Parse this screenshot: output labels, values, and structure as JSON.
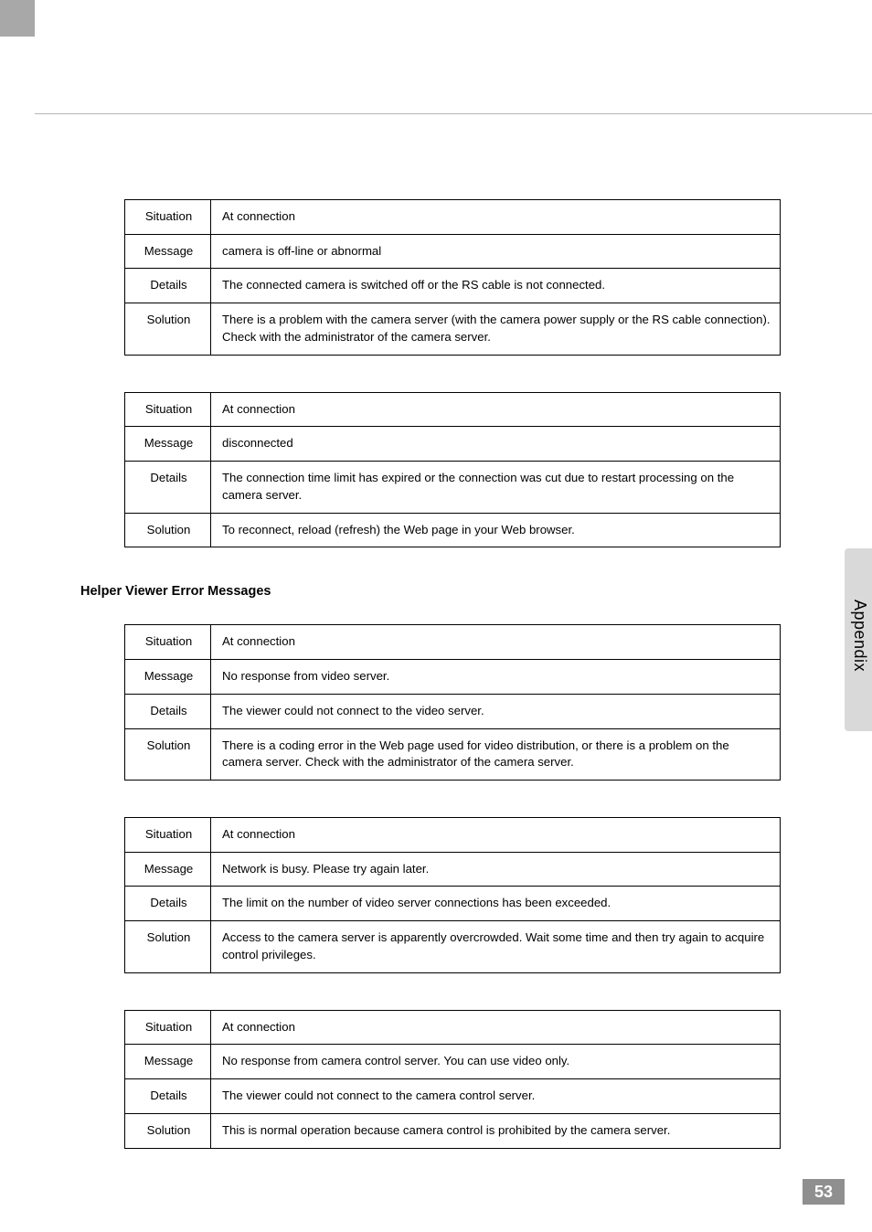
{
  "sideTab": {
    "label": "Appendix"
  },
  "pageNumber": "53",
  "sectionHeading": "Helper Viewer Error Messages",
  "tables": [
    {
      "rows": [
        {
          "label": "Situation",
          "value": "At connection"
        },
        {
          "label": "Message",
          "value": "camera is off-line or abnormal"
        },
        {
          "label": "Details",
          "value": "The connected camera is switched off or the RS cable is not connected."
        },
        {
          "label": "Solution",
          "value": "There is a problem with the camera server (with the camera power supply or the RS cable connection). Check with the administrator of the camera server."
        }
      ]
    },
    {
      "rows": [
        {
          "label": "Situation",
          "value": "At connection"
        },
        {
          "label": "Message",
          "value": "disconnected"
        },
        {
          "label": "Details",
          "value": "The connection time limit has expired or the connection was cut due to restart processing on the camera server."
        },
        {
          "label": "Solution",
          "value": "To reconnect, reload (refresh) the Web page in your Web browser."
        }
      ]
    },
    {
      "rows": [
        {
          "label": "Situation",
          "value": "At connection"
        },
        {
          "label": "Message",
          "value": "No response from video server."
        },
        {
          "label": "Details",
          "value": "The viewer could not connect to the video server."
        },
        {
          "label": "Solution",
          "value": "There is a coding error in the Web page used for video distribution, or there is a problem on the camera server. Check with the administrator of the camera server."
        }
      ]
    },
    {
      "rows": [
        {
          "label": "Situation",
          "value": "At connection"
        },
        {
          "label": "Message",
          "value": "Network is busy. Please try again later."
        },
        {
          "label": "Details",
          "value": "The limit on the number of video server connections has been exceeded."
        },
        {
          "label": "Solution",
          "value": "Access to the camera server is apparently overcrowded. Wait some time and then try again to acquire control privileges."
        }
      ]
    },
    {
      "rows": [
        {
          "label": "Situation",
          "value": "At connection"
        },
        {
          "label": "Message",
          "value": "No response from camera control server. You can use video only."
        },
        {
          "label": "Details",
          "value": "The viewer could not connect to the camera control server."
        },
        {
          "label": "Solution",
          "value": "This is normal operation because camera control is prohibited by the camera server."
        }
      ]
    }
  ]
}
